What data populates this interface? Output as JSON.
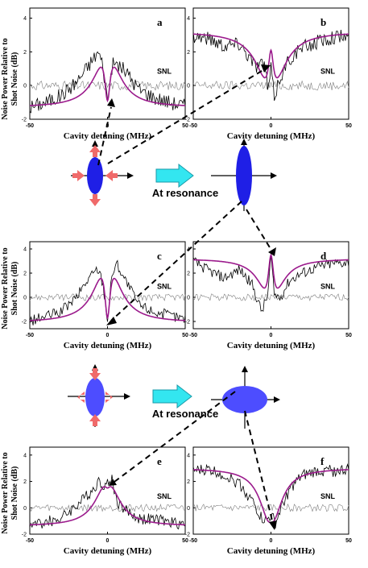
{
  "figure": {
    "ylabel_line1": "Noise Power Relative to",
    "ylabel_line2": "Shot Noise (dB)",
    "resonance_label": "At resonance",
    "colors": {
      "fit": "#9b1a8c",
      "data": "#000000",
      "snl": "#7f7f7f",
      "ellipse_dark": "#1f1fe6",
      "ellipse_light": "#4d4dff",
      "squeeze_arrow": "#f06a6a",
      "big_arrow": "#33e6f0"
    },
    "icons": [
      "double-headed-arrow-icon",
      "big-right-arrow-icon"
    ]
  },
  "chart_data": [
    {
      "id": "a",
      "type": "line",
      "panel_label": "a",
      "xlabel": "Cavity detuning (MHz)",
      "xticks": [
        "-50",
        "0",
        "50"
      ],
      "yticks": [
        "-2",
        "0",
        "2",
        "4"
      ],
      "xlim": [
        -50,
        50
      ],
      "ylim": [
        -2,
        4.6
      ],
      "snl_label": "SNL",
      "fit": {
        "baseline": -1.3,
        "peak": 3.8,
        "peak_width": 9,
        "dip": 3.4,
        "dip_width": 2.2
      },
      "noisy_points": [
        [
          -50,
          -1.3
        ],
        [
          -40,
          -1.0
        ],
        [
          -30,
          -0.6
        ],
        [
          -20,
          0.2
        ],
        [
          -12,
          1.2
        ],
        [
          -6,
          2.0
        ],
        [
          -3,
          1.2
        ],
        [
          0,
          -0.9
        ],
        [
          3,
          1.2
        ],
        [
          6,
          1.3
        ],
        [
          12,
          0.8
        ],
        [
          20,
          -0.2
        ],
        [
          30,
          -0.7
        ],
        [
          40,
          -1.0
        ],
        [
          50,
          -1.2
        ]
      ]
    },
    {
      "id": "b",
      "type": "line",
      "panel_label": "b",
      "xlabel": "Cavity detuning (MHz)",
      "xticks": [
        "-50",
        "0",
        "50"
      ],
      "yticks": [
        "-2",
        "0",
        "2",
        "4"
      ],
      "xlim": [
        -50,
        50
      ],
      "ylim": [
        -2,
        4.6
      ],
      "snl_label": "SNL",
      "fit": {
        "baseline": 3.2,
        "main_dip": 3.8,
        "main_width": 10,
        "small_peak": 2.7,
        "small_width": 2
      },
      "noisy_points": [
        [
          -50,
          3.0
        ],
        [
          -40,
          2.8
        ],
        [
          -30,
          2.4
        ],
        [
          -20,
          2.5
        ],
        [
          -10,
          1.2
        ],
        [
          -4,
          1.3
        ],
        [
          -2,
          -0.4
        ],
        [
          0,
          1.0
        ],
        [
          2,
          -0.7
        ],
        [
          6,
          0.5
        ],
        [
          12,
          1.6
        ],
        [
          20,
          2.2
        ],
        [
          30,
          2.6
        ],
        [
          40,
          2.9
        ],
        [
          50,
          2.9
        ]
      ]
    },
    {
      "id": "c",
      "type": "line",
      "panel_label": "c",
      "xlabel": "Cavity detuning (MHz)",
      "xticks": [
        "-50",
        "0",
        "50"
      ],
      "yticks": [
        "-2",
        "0",
        "2",
        "4"
      ],
      "xlim": [
        -50,
        50
      ],
      "ylim": [
        -2.6,
        4.6
      ],
      "snl_label": "SNL",
      "fit": {
        "baseline": -2.1,
        "peak": 5.9,
        "peak_width": 9,
        "dip": 5.5,
        "dip_width": 2.2
      },
      "noisy_points": [
        [
          -50,
          -2.0
        ],
        [
          -40,
          -1.6
        ],
        [
          -30,
          -1.2
        ],
        [
          -20,
          0.0
        ],
        [
          -12,
          1.6
        ],
        [
          -6,
          2.4
        ],
        [
          -3,
          1.2
        ],
        [
          0,
          -1.8
        ],
        [
          3,
          2.0
        ],
        [
          6,
          2.8
        ],
        [
          12,
          1.3
        ],
        [
          20,
          -0.6
        ],
        [
          30,
          -1.2
        ],
        [
          40,
          -1.5
        ],
        [
          50,
          -1.8
        ]
      ]
    },
    {
      "id": "d",
      "type": "line",
      "panel_label": "d",
      "xlabel": "Cavity detuning (MHz)",
      "xticks": [
        "-50",
        "0",
        "50"
      ],
      "yticks": [
        "-2",
        "0",
        "2",
        "4"
      ],
      "xlim": [
        -50,
        50
      ],
      "ylim": [
        -2.6,
        4.6
      ],
      "snl_label": "SNL",
      "fit": {
        "baseline": 3.2,
        "main_dip": 4.4,
        "main_width": 8,
        "small_peak": 4.7,
        "small_width": 2.2
      },
      "noisy_points": [
        [
          -50,
          3.0
        ],
        [
          -40,
          2.2
        ],
        [
          -30,
          1.6
        ],
        [
          -20,
          2.3
        ],
        [
          -12,
          1.0
        ],
        [
          -6,
          -1.2
        ],
        [
          -2,
          0.2
        ],
        [
          0,
          3.4
        ],
        [
          2,
          0.2
        ],
        [
          6,
          0.0
        ],
        [
          12,
          1.4
        ],
        [
          20,
          2.0
        ],
        [
          30,
          2.5
        ],
        [
          40,
          2.8
        ],
        [
          50,
          2.9
        ]
      ]
    },
    {
      "id": "e",
      "type": "line",
      "panel_label": "e",
      "xlabel": "Cavity detuning (MHz)",
      "xticks": [
        "-50",
        "0",
        "50"
      ],
      "yticks": [
        "-2",
        "0",
        "2",
        "4"
      ],
      "xlim": [
        -50,
        50
      ],
      "ylim": [
        -2,
        4.6
      ],
      "snl_label": "SNL",
      "fit": {
        "baseline": -1.4,
        "peak": 3.5,
        "peak_width": 9,
        "dip": 0.6,
        "dip_width": 2.2
      },
      "noisy_points": [
        [
          -50,
          -1.3
        ],
        [
          -40,
          -1.1
        ],
        [
          -30,
          -0.8
        ],
        [
          -20,
          0.2
        ],
        [
          -12,
          1.0
        ],
        [
          -6,
          2.0
        ],
        [
          -3,
          1.8
        ],
        [
          0,
          1.8
        ],
        [
          3,
          2.2
        ],
        [
          6,
          0.5
        ],
        [
          12,
          -0.2
        ],
        [
          20,
          -0.8
        ],
        [
          30,
          -0.9
        ],
        [
          40,
          -1.1
        ],
        [
          50,
          -1.2
        ]
      ]
    },
    {
      "id": "f",
      "type": "line",
      "panel_label": "f",
      "xlabel": "Cavity detuning (MHz)",
      "xticks": [
        "-50",
        "0",
        "50"
      ],
      "yticks": [
        "-2",
        "0",
        "2",
        "4"
      ],
      "xlim": [
        -50,
        50
      ],
      "ylim": [
        -2,
        4.6
      ],
      "snl_label": "SNL",
      "fit": {
        "baseline": 3.0,
        "main_dip": 4.4,
        "main_width": 8,
        "small_peak": 0.3,
        "small_width": 2
      },
      "noisy_points": [
        [
          -50,
          2.8
        ],
        [
          -40,
          2.9
        ],
        [
          -30,
          2.5
        ],
        [
          -20,
          1.8
        ],
        [
          -12,
          0.5
        ],
        [
          -6,
          -0.8
        ],
        [
          -3,
          -1.0
        ],
        [
          0,
          -0.6
        ],
        [
          3,
          -1.2
        ],
        [
          6,
          -0.2
        ],
        [
          12,
          1.4
        ],
        [
          20,
          2.4
        ],
        [
          30,
          2.8
        ],
        [
          40,
          2.8
        ],
        [
          50,
          2.9
        ]
      ]
    }
  ]
}
